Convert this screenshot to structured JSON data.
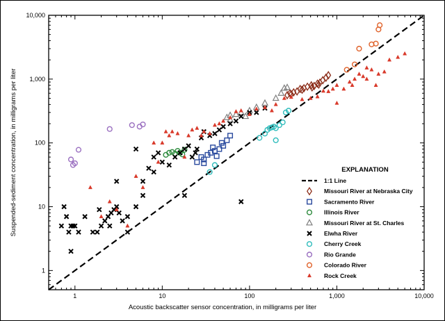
{
  "chart_data": {
    "type": "scatter",
    "title": "",
    "xlabel": "Acoustic backscatter sensor concentration, in milligrams per liter",
    "ylabel": "Suspended-sediment concentration, in milligrams per liter",
    "xscale": "log",
    "yscale": "log",
    "xlim": [
      0.5,
      10000
    ],
    "ylim": [
      0.5,
      10000
    ],
    "x_ticks": [
      {
        "value": 1,
        "label": "1"
      },
      {
        "value": 10,
        "label": "10"
      },
      {
        "value": 100,
        "label": "100"
      },
      {
        "value": 1000,
        "label": "1,000"
      },
      {
        "value": 10000,
        "label": "10,000"
      }
    ],
    "y_ticks": [
      {
        "value": 1,
        "label": "1"
      },
      {
        "value": 10,
        "label": "10"
      },
      {
        "value": 100,
        "label": "100"
      },
      {
        "value": 1000,
        "label": "1,000"
      },
      {
        "value": 10000,
        "label": "10,000"
      }
    ],
    "legend_title": "EXPLANATION",
    "legend_position": "bottom-right",
    "reference_line": {
      "name": "1:1 Line",
      "style": "dashed",
      "color": "#000000"
    },
    "series": [
      {
        "name": "Missouri River at Nebraska City",
        "marker": "diamond",
        "color": "#8b2c18",
        "points": [
          [
            270,
            560
          ],
          [
            290,
            600
          ],
          [
            320,
            620
          ],
          [
            350,
            640
          ],
          [
            380,
            700
          ],
          [
            420,
            720
          ],
          [
            460,
            760
          ],
          [
            510,
            800
          ],
          [
            550,
            780
          ],
          [
            600,
            850
          ],
          [
            640,
            880
          ],
          [
            690,
            960
          ],
          [
            750,
            1050
          ],
          [
            800,
            1150
          ],
          [
            300,
            580
          ],
          [
            400,
            680
          ],
          [
            520,
            740
          ],
          [
            620,
            820
          ]
        ]
      },
      {
        "name": "Sacramento River",
        "marker": "square",
        "color": "#2a4a9e",
        "points": [
          [
            25,
            50
          ],
          [
            28,
            60
          ],
          [
            30,
            55
          ],
          [
            33,
            65
          ],
          [
            36,
            70
          ],
          [
            40,
            75
          ],
          [
            45,
            80
          ],
          [
            50,
            90
          ],
          [
            55,
            110
          ],
          [
            60,
            130
          ],
          [
            48,
            100
          ],
          [
            38,
            85
          ],
          [
            42,
            62
          ],
          [
            30,
            48
          ]
        ]
      },
      {
        "name": "Illinois River",
        "marker": "circle",
        "color": "#2e8b3e",
        "points": [
          [
            11,
            65
          ],
          [
            12,
            70
          ],
          [
            13,
            72
          ],
          [
            14,
            68
          ],
          [
            15,
            75
          ],
          [
            16,
            70
          ],
          [
            18,
            78
          ],
          [
            17,
            66
          ]
        ]
      },
      {
        "name": "Missouri River at St. Charles",
        "marker": "triangle",
        "color": "#7f7f7f",
        "points": [
          [
            55,
            250
          ],
          [
            60,
            270
          ],
          [
            70,
            280
          ],
          [
            80,
            300
          ],
          [
            100,
            320
          ],
          [
            120,
            360
          ],
          [
            150,
            420
          ],
          [
            200,
            500
          ],
          [
            230,
            600
          ],
          [
            250,
            720
          ],
          [
            270,
            740
          ],
          [
            60,
            230
          ],
          [
            90,
            260
          ]
        ]
      },
      {
        "name": "Elwha River",
        "marker": "x",
        "color": "#000000",
        "points": [
          [
            0.7,
            5
          ],
          [
            0.75,
            10
          ],
          [
            0.8,
            7
          ],
          [
            0.85,
            4
          ],
          [
            0.9,
            5
          ],
          [
            0.95,
            5
          ],
          [
            1,
            5
          ],
          [
            1.1,
            4
          ],
          [
            1.3,
            7
          ],
          [
            1.6,
            4
          ],
          [
            1.8,
            4
          ],
          [
            2,
            5
          ],
          [
            2.2,
            6
          ],
          [
            2.4,
            7
          ],
          [
            2.6,
            8
          ],
          [
            2.8,
            9
          ],
          [
            3,
            10
          ],
          [
            3.2,
            8
          ],
          [
            3.5,
            6
          ],
          [
            4,
            7
          ],
          [
            5,
            10
          ],
          [
            6,
            25
          ],
          [
            7,
            40
          ],
          [
            8,
            60
          ],
          [
            9,
            70
          ],
          [
            10,
            50
          ],
          [
            12,
            45
          ],
          [
            14,
            60
          ],
          [
            16,
            70
          ],
          [
            18,
            80
          ],
          [
            20,
            90
          ],
          [
            22,
            60
          ],
          [
            25,
            80
          ],
          [
            28,
            120
          ],
          [
            30,
            150
          ],
          [
            35,
            130
          ],
          [
            40,
            140
          ],
          [
            45,
            160
          ],
          [
            50,
            180
          ],
          [
            60,
            200
          ],
          [
            70,
            220
          ],
          [
            80,
            260
          ],
          [
            100,
            300
          ],
          [
            120,
            300
          ],
          [
            150,
            350
          ],
          [
            0.9,
            2
          ],
          [
            3,
            25
          ],
          [
            5,
            80
          ],
          [
            18,
            15
          ],
          [
            80,
            12
          ],
          [
            6,
            15
          ],
          [
            8,
            35
          ],
          [
            24,
            70
          ],
          [
            4,
            4
          ],
          [
            2.5,
            5
          ],
          [
            1.9,
            9
          ]
        ]
      },
      {
        "name": "Cherry Creek",
        "marker": "circle",
        "color": "#2fbcbc",
        "points": [
          [
            35,
            35
          ],
          [
            40,
            45
          ],
          [
            130,
            120
          ],
          [
            150,
            140
          ],
          [
            160,
            160
          ],
          [
            170,
            170
          ],
          [
            180,
            175
          ],
          [
            190,
            180
          ],
          [
            200,
            170
          ],
          [
            220,
            190
          ],
          [
            240,
            210
          ],
          [
            260,
            300
          ],
          [
            280,
            320
          ],
          [
            200,
            110
          ]
        ]
      },
      {
        "name": "Rio Grande",
        "marker": "circle",
        "color": "#9a6fc0",
        "points": [
          [
            0.9,
            55
          ],
          [
            0.95,
            45
          ],
          [
            1,
            48
          ],
          [
            1.1,
            78
          ],
          [
            2.5,
            165
          ],
          [
            4.5,
            190
          ],
          [
            5.5,
            180
          ],
          [
            6,
            195
          ]
        ]
      },
      {
        "name": "Colorado River",
        "marker": "circle",
        "color": "#e0622a",
        "points": [
          [
            1300,
            1400
          ],
          [
            1600,
            1700
          ],
          [
            1800,
            3000
          ],
          [
            2500,
            3500
          ],
          [
            2800,
            3600
          ],
          [
            3000,
            6000
          ],
          [
            3100,
            7000
          ]
        ]
      },
      {
        "name": "Rock Creek",
        "marker": "triangle-filled",
        "color": "#d93a2b",
        "points": [
          [
            1.5,
            20
          ],
          [
            2,
            7
          ],
          [
            2.5,
            12
          ],
          [
            3,
            9
          ],
          [
            4,
            5
          ],
          [
            5,
            30
          ],
          [
            6,
            20
          ],
          [
            8,
            100
          ],
          [
            9,
            50
          ],
          [
            10,
            100
          ],
          [
            11,
            150
          ],
          [
            12,
            130
          ],
          [
            13,
            150
          ],
          [
            15,
            140
          ],
          [
            18,
            60
          ],
          [
            20,
            130
          ],
          [
            22,
            160
          ],
          [
            25,
            170
          ],
          [
            28,
            130
          ],
          [
            30,
            150
          ],
          [
            35,
            140
          ],
          [
            40,
            190
          ],
          [
            45,
            200
          ],
          [
            50,
            220
          ],
          [
            60,
            250
          ],
          [
            70,
            310
          ],
          [
            80,
            320
          ],
          [
            100,
            280
          ],
          [
            120,
            340
          ],
          [
            150,
            360
          ],
          [
            180,
            320
          ],
          [
            200,
            400
          ],
          [
            250,
            500
          ],
          [
            300,
            520
          ],
          [
            400,
            480
          ],
          [
            500,
            500
          ],
          [
            600,
            530
          ],
          [
            700,
            650
          ],
          [
            800,
            640
          ],
          [
            900,
            700
          ],
          [
            1000,
            800
          ],
          [
            1200,
            700
          ],
          [
            1400,
            900
          ],
          [
            1600,
            1000
          ],
          [
            1800,
            1200
          ],
          [
            2000,
            1100
          ],
          [
            2200,
            1500
          ],
          [
            2500,
            1400
          ],
          [
            2800,
            800
          ],
          [
            3000,
            1200
          ],
          [
            3500,
            1300
          ],
          [
            4000,
            2000
          ],
          [
            5000,
            2200
          ],
          [
            6000,
            2500
          ],
          [
            2200,
            1000
          ],
          [
            1000,
            420
          ],
          [
            1500,
            800
          ]
        ]
      }
    ]
  }
}
